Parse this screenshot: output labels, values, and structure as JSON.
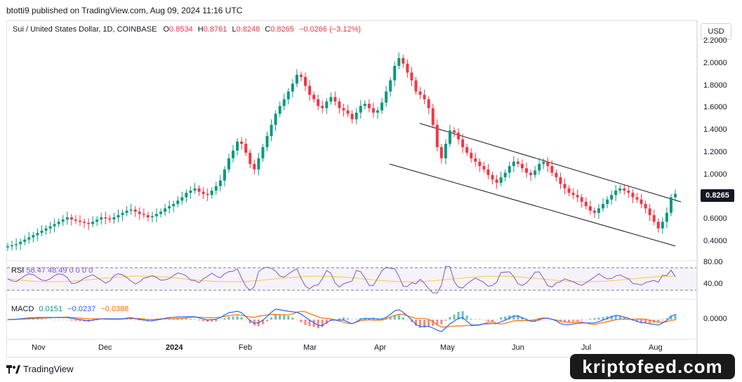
{
  "header": {
    "published_text": "btotti9 published on TradingView.com, Aug 09, 2024 11:16 UTC"
  },
  "legend": {
    "symbol": "Sui / United States Dollar, 1D, COINBASE",
    "o_label": "O",
    "o_value": "0.8534",
    "h_label": "H",
    "h_value": "0.8761",
    "l_label": "L",
    "l_value": "0.8248",
    "c_label": "C",
    "c_value": "0.8265",
    "change": "−0.0266 (−3.12%)"
  },
  "currency_button": "USD",
  "last_price_tag": "0.8265",
  "rsi_label": "RSI",
  "rsi_values": "58.47  48.49  0  0  0  0",
  "macd": {
    "label": "MACD",
    "v1": "0.0151",
    "v2": "−0.0237",
    "v3": "−0.0388"
  },
  "footer": {
    "brand": "TradingView"
  },
  "watermark": "kriptofeed.com",
  "colors": {
    "up": "#089981",
    "down": "#f23645",
    "rsi": "#7e57c2",
    "rsi_ma": "#f7c948",
    "macd": "#2962ff",
    "signal": "#ff6d00",
    "channel": "#131722"
  },
  "chart_data": {
    "type": "candlestick",
    "price_axis_ticks": [
      "2.2000",
      "2.0000",
      "1.8000",
      "1.6000",
      "1.4000",
      "1.2000",
      "1.0000",
      "0.6000",
      "0.4000"
    ],
    "rsi_axis_ticks": [
      "80.00",
      "40.00"
    ],
    "macd_axis_ticks": [
      "0.0000"
    ],
    "x_tick_labels": [
      "Nov",
      "Dec",
      "2024",
      "Feb",
      "Mar",
      "Apr",
      "May",
      "Jun",
      "Jul",
      "Aug"
    ],
    "ylim": [
      0.3,
      2.25
    ],
    "close_series": [
      0.36,
      0.37,
      0.38,
      0.4,
      0.42,
      0.44,
      0.46,
      0.48,
      0.5,
      0.52,
      0.54,
      0.56,
      0.58,
      0.6,
      0.62,
      0.6,
      0.59,
      0.58,
      0.57,
      0.56,
      0.58,
      0.6,
      0.62,
      0.61,
      0.6,
      0.62,
      0.64,
      0.66,
      0.68,
      0.69,
      0.67,
      0.65,
      0.64,
      0.62,
      0.63,
      0.65,
      0.67,
      0.7,
      0.72,
      0.74,
      0.77,
      0.8,
      0.84,
      0.86,
      0.88,
      0.85,
      0.83,
      0.82,
      0.86,
      0.9,
      0.95,
      1.05,
      1.15,
      1.22,
      1.3,
      1.28,
      1.2,
      1.1,
      1.05,
      1.15,
      1.25,
      1.35,
      1.45,
      1.55,
      1.62,
      1.68,
      1.75,
      1.82,
      1.9,
      1.88,
      1.8,
      1.72,
      1.68,
      1.62,
      1.6,
      1.66,
      1.7,
      1.66,
      1.6,
      1.58,
      1.55,
      1.5,
      1.56,
      1.62,
      1.64,
      1.6,
      1.56,
      1.58,
      1.65,
      1.75,
      1.85,
      1.98,
      2.05,
      2.0,
      1.92,
      1.85,
      1.75,
      1.72,
      1.68,
      1.6,
      1.45,
      1.25,
      1.15,
      1.28,
      1.4,
      1.38,
      1.32,
      1.25,
      1.2,
      1.15,
      1.12,
      1.08,
      1.05,
      1.0,
      0.96,
      0.93,
      0.98,
      1.02,
      1.08,
      1.12,
      1.1,
      1.06,
      1.02,
      1.0,
      1.04,
      1.1,
      1.12,
      1.08,
      1.02,
      0.98,
      0.92,
      0.88,
      0.84,
      0.82,
      0.8,
      0.76,
      0.72,
      0.68,
      0.66,
      0.7,
      0.74,
      0.78,
      0.82,
      0.86,
      0.88,
      0.86,
      0.84,
      0.8,
      0.78,
      0.74,
      0.7,
      0.64,
      0.58,
      0.52,
      0.58,
      0.66,
      0.8,
      0.83
    ]
  }
}
